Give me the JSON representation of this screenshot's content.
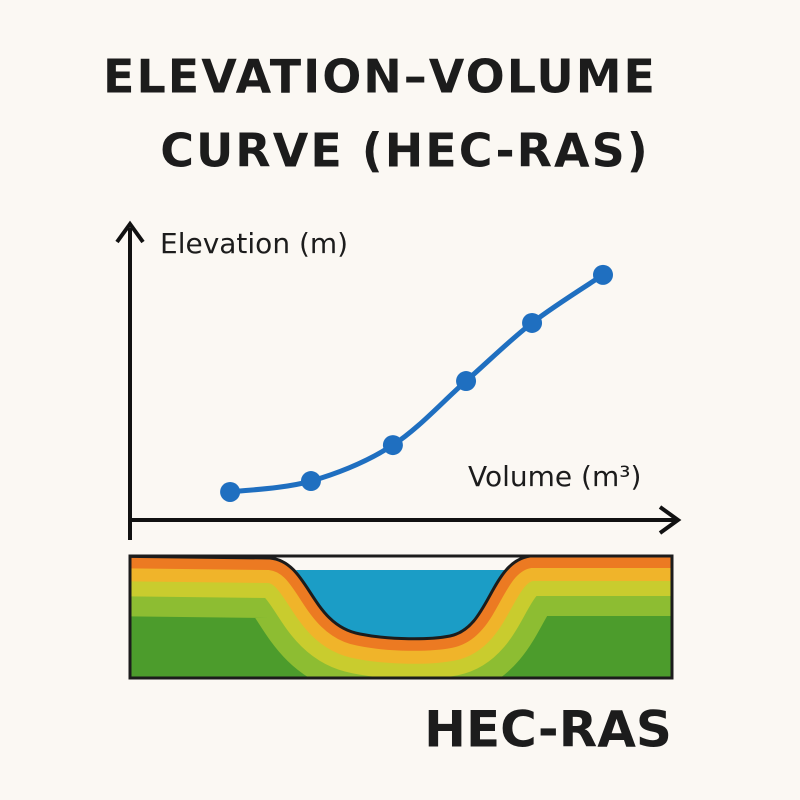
{
  "chart_data": {
    "type": "line",
    "title": [
      "ELEVATION–VOLUME",
      "CURVE (HEC-RAS)"
    ],
    "y_label": "Elevation (m)",
    "x_label": "Volume (m³)",
    "caption": "HEC-RAS",
    "x": [
      18.2,
      32.9,
      47.8,
      61.1,
      73.1,
      86
    ],
    "series": [
      {
        "color": "#1f6fc0",
        "values": [
          9.5,
          13.2,
          25.4,
          47.1,
          66.8,
          83.1
        ]
      }
    ],
    "xlim": [
      0,
      100
    ],
    "ylim": [
      0,
      100
    ]
  }
}
